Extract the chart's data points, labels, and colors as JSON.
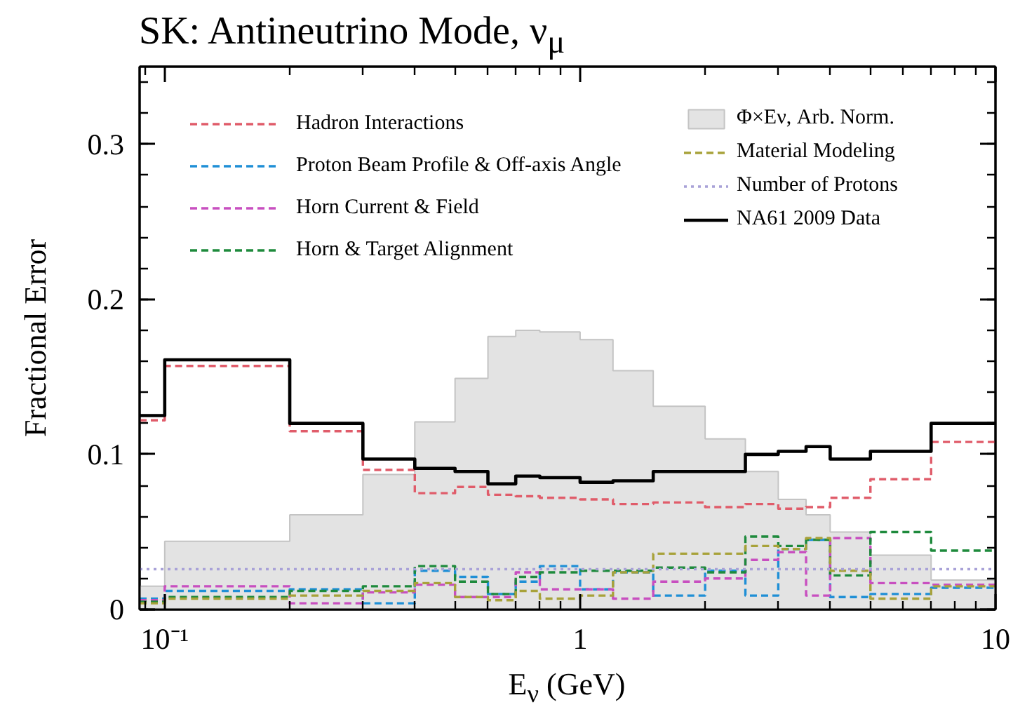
{
  "chart_data": {
    "type": "step",
    "title": "SK: Antineutrino Mode, ν$_{μ}$",
    "xlabel": "E$_{ν}$ (GeV)",
    "ylabel": "Fractional Error",
    "x": [
      0.087,
      0.1,
      0.2,
      0.3,
      0.4,
      0.5,
      0.6,
      0.7,
      0.8,
      1.0,
      1.2,
      1.5,
      2.0,
      2.5,
      3.0,
      3.5,
      4.0,
      5.0,
      7.0,
      10
    ],
    "series": [
      {
        "name": "Hadron Interactions",
        "color": "#e05c6a",
        "line_style": "dashed",
        "values": [
          0.122,
          0.157,
          0.115,
          0.09,
          0.075,
          0.079,
          0.074,
          0.073,
          0.072,
          0.071,
          0.068,
          0.069,
          0.066,
          0.068,
          0.065,
          0.066,
          0.072,
          0.084,
          0.108,
          0.108
        ]
      },
      {
        "name": "Proton Beam Profile & Off-axis Angle",
        "color": "#1f8fd6",
        "line_style": "dashed",
        "values": [
          0.007,
          0.012,
          0.013,
          0.004,
          0.025,
          0.021,
          0.01,
          0.018,
          0.028,
          0.013,
          0.024,
          0.009,
          0.025,
          0.009,
          0.039,
          0.045,
          0.008,
          0.01,
          0.014,
          0.014
        ]
      },
      {
        "name": "Horn Current & Field",
        "color": "#c84fc0",
        "line_style": "dashed",
        "values": [
          0.006,
          0.015,
          0.004,
          0.011,
          0.016,
          0.008,
          0.008,
          0.024,
          0.013,
          0.013,
          0.007,
          0.018,
          0.02,
          0.032,
          0.037,
          0.009,
          0.046,
          0.017,
          0.016,
          0.016
        ]
      },
      {
        "name": "Horn & Target Alignment",
        "color": "#1e8a3c",
        "line_style": "dashed",
        "values": [
          0.005,
          0.008,
          0.012,
          0.015,
          0.028,
          0.018,
          0.01,
          0.021,
          0.024,
          0.025,
          0.025,
          0.027,
          0.024,
          0.047,
          0.041,
          0.045,
          0.022,
          0.05,
          0.038,
          0.038
        ]
      },
      {
        "name": "Φ×Eν, Arb. Norm.",
        "type": "area",
        "color": "#e3e3e3",
        "x": [
          0.087,
          0.1,
          0.1,
          0.2,
          0.2,
          0.3,
          0.3,
          0.4,
          0.4,
          0.5,
          0.5,
          0.6,
          0.6,
          0.7,
          0.7,
          0.8,
          0.8,
          1.0,
          1.0,
          1.2,
          1.2,
          1.5,
          1.5,
          2.0,
          2.0,
          2.5,
          2.5,
          3.0,
          3.0,
          3.5,
          3.5,
          4.0,
          4.0,
          5.0,
          5.0,
          7.0,
          7.0,
          10
        ],
        "values": [
          0.015,
          0.015,
          0.044,
          0.044,
          0.061,
          0.061,
          0.087,
          0.087,
          0.121,
          0.121,
          0.149,
          0.149,
          0.176,
          0.176,
          0.18,
          0.18,
          0.179,
          0.179,
          0.174,
          0.174,
          0.154,
          0.154,
          0.131,
          0.131,
          0.11,
          0.11,
          0.089,
          0.089,
          0.071,
          0.071,
          0.061,
          0.061,
          0.05,
          0.05,
          0.035,
          0.035,
          0.019,
          0.019
        ]
      },
      {
        "name": "Material Modeling",
        "color": "#a8a23a",
        "line_style": "dashed",
        "values": [
          0.004,
          0.007,
          0.009,
          0.012,
          0.017,
          0.008,
          0.006,
          0.012,
          0.007,
          0.009,
          0.024,
          0.036,
          0.036,
          0.041,
          0.039,
          0.046,
          0.025,
          0.007,
          0.015,
          0.015
        ]
      },
      {
        "name": "Number of Protons",
        "color": "#a9a2d8",
        "line_style": "dotted",
        "values": [
          0.026,
          0.026,
          0.026,
          0.026,
          0.026,
          0.026,
          0.026,
          0.026,
          0.026,
          0.026,
          0.026,
          0.026,
          0.026,
          0.026,
          0.026,
          0.026,
          0.026,
          0.026,
          0.026,
          0.026
        ]
      },
      {
        "name": "NA61 2009 Data",
        "color": "#000000",
        "line_style": "solid",
        "values": [
          0.125,
          0.161,
          0.12,
          0.097,
          0.091,
          0.089,
          0.081,
          0.086,
          0.085,
          0.082,
          0.083,
          0.089,
          0.089,
          0.1,
          0.102,
          0.105,
          0.097,
          0.102,
          0.12,
          0.12
        ]
      }
    ],
    "xlim": [
      0.087,
      10
    ],
    "ylim": [
      0,
      0.35
    ],
    "xticks": [
      {
        "value": 0.1,
        "label": "10⁻¹"
      },
      1,
      10
    ],
    "yticks": [
      0,
      0.1,
      0.2,
      0.3
    ],
    "log": "x",
    "grid": false,
    "legend": "top"
  }
}
